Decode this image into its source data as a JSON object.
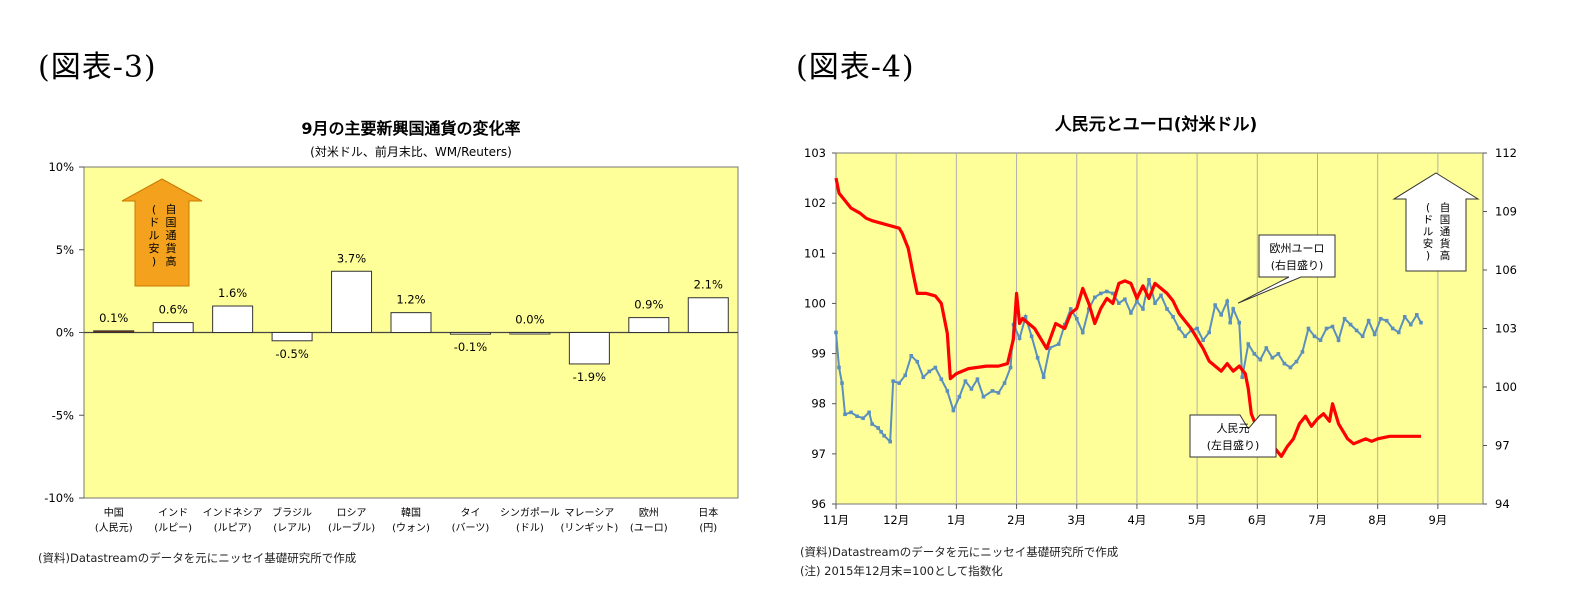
{
  "figures": {
    "left_label": "(図表-3)",
    "right_label": "(図表-4)"
  },
  "colors": {
    "plot_bg": "#ffff99",
    "bar_fill": "#ffffff",
    "bar_china": "#7b2a0e",
    "arrow_orange": "#f4a21e",
    "rmb_line": "#ff0000",
    "eur_line": "#5b8fbe"
  },
  "chart_data": [
    {
      "type": "bar",
      "title": "9月の主要新興国通貨の変化率",
      "subtitle": "(対米ドル、前月末比、WM/Reuters)",
      "categories": [
        [
          "中国",
          "(人民元)"
        ],
        [
          "インド",
          "(ルピー)"
        ],
        [
          "インドネシア",
          "(ルピア)"
        ],
        [
          "ブラジル",
          "(レアル)"
        ],
        [
          "ロシア",
          "(ルーブル)"
        ],
        [
          "韓国",
          "(ウォン)"
        ],
        [
          "タイ",
          "(バーツ)"
        ],
        [
          "シンガポール",
          "(ドル)"
        ],
        [
          "マレーシア",
          "(リンギット)"
        ],
        [
          "欧州",
          "(ユーロ)"
        ],
        [
          "日本",
          "(円)"
        ]
      ],
      "values": [
        0.1,
        0.6,
        1.6,
        -0.5,
        3.7,
        1.2,
        -0.1,
        0.0,
        -1.9,
        0.9,
        2.1
      ],
      "value_labels": [
        "0.1%",
        "0.6%",
        "1.6%",
        "-0.5%",
        "3.7%",
        "1.2%",
        "-0.1%",
        "0.0%",
        "-1.9%",
        "0.9%",
        "2.1%"
      ],
      "ylim": [
        -10,
        10
      ],
      "yticks": [
        10,
        5,
        0,
        -5,
        -10
      ],
      "ytick_labels": [
        "10%",
        "5%",
        "0%",
        "-5%",
        "-10%"
      ],
      "arrow_annotation": [
        "自国通貨高",
        "(ドル安)"
      ],
      "source_note": "(資料)Datastreamのデータを元にニッセイ基礎研究所で作成"
    },
    {
      "type": "line",
      "title": "人民元とユーロ(対米ドル)",
      "x_tick_labels": [
        "11月",
        "12月",
        "1月",
        "2月",
        "3月",
        "4月",
        "5月",
        "6月",
        "7月",
        "8月",
        "9月"
      ],
      "y_left": {
        "ticks": [
          103,
          102,
          101,
          100,
          99,
          98,
          97,
          96
        ],
        "ylim": [
          96,
          103
        ]
      },
      "y_right": {
        "ticks": [
          112,
          109,
          106,
          103,
          100,
          97,
          94
        ],
        "ylim": [
          94,
          112
        ]
      },
      "grid": "vertical",
      "series": [
        {
          "name": "人民元",
          "callout": [
            "人民元",
            "(左目盛り)"
          ],
          "axis": "left",
          "points": [
            [
              0,
              102.5
            ],
            [
              0.05,
              102.2
            ],
            [
              0.25,
              101.9
            ],
            [
              0.4,
              101.8
            ],
            [
              0.5,
              101.7
            ],
            [
              0.6,
              101.65
            ],
            [
              0.75,
              101.6
            ],
            [
              0.9,
              101.55
            ],
            [
              1.05,
              101.5
            ],
            [
              1.1,
              101.4
            ],
            [
              1.2,
              101.1
            ],
            [
              1.28,
              100.6
            ],
            [
              1.35,
              100.2
            ],
            [
              1.5,
              100.2
            ],
            [
              1.65,
              100.15
            ],
            [
              1.75,
              100.0
            ],
            [
              1.85,
              99.4
            ],
            [
              1.9,
              98.5
            ],
            [
              2.0,
              98.6
            ],
            [
              2.2,
              98.7
            ],
            [
              2.5,
              98.75
            ],
            [
              2.7,
              98.75
            ],
            [
              2.85,
              98.8
            ],
            [
              2.95,
              99.3
            ],
            [
              3.0,
              100.2
            ],
            [
              3.05,
              99.6
            ],
            [
              3.1,
              99.7
            ],
            [
              3.3,
              99.5
            ],
            [
              3.5,
              99.1
            ],
            [
              3.65,
              99.6
            ],
            [
              3.8,
              99.5
            ],
            [
              3.9,
              99.8
            ],
            [
              4.0,
              99.9
            ],
            [
              4.1,
              100.3
            ],
            [
              4.2,
              100.0
            ],
            [
              4.3,
              99.6
            ],
            [
              4.4,
              99.9
            ],
            [
              4.5,
              100.1
            ],
            [
              4.6,
              100.0
            ],
            [
              4.7,
              100.4
            ],
            [
              4.8,
              100.45
            ],
            [
              4.9,
              100.4
            ],
            [
              5.0,
              100.1
            ],
            [
              5.1,
              100.35
            ],
            [
              5.2,
              100.1
            ],
            [
              5.3,
              100.4
            ],
            [
              5.4,
              100.3
            ],
            [
              5.5,
              100.2
            ],
            [
              5.6,
              100.05
            ],
            [
              5.7,
              99.8
            ],
            [
              5.8,
              99.65
            ],
            [
              5.9,
              99.5
            ],
            [
              6.0,
              99.3
            ],
            [
              6.1,
              99.1
            ],
            [
              6.2,
              98.85
            ],
            [
              6.3,
              98.75
            ],
            [
              6.4,
              98.65
            ],
            [
              6.5,
              98.8
            ],
            [
              6.6,
              98.65
            ],
            [
              6.7,
              98.75
            ],
            [
              6.8,
              98.6
            ],
            [
              6.85,
              98.3
            ],
            [
              6.9,
              97.8
            ],
            [
              7.0,
              97.5
            ],
            [
              7.05,
              97.1
            ],
            [
              7.2,
              97.0
            ],
            [
              7.3,
              97.1
            ],
            [
              7.4,
              96.95
            ],
            [
              7.5,
              97.15
            ],
            [
              7.6,
              97.3
            ],
            [
              7.7,
              97.6
            ],
            [
              7.8,
              97.75
            ],
            [
              7.9,
              97.55
            ],
            [
              8.0,
              97.7
            ],
            [
              8.1,
              97.8
            ],
            [
              8.2,
              97.65
            ],
            [
              8.25,
              98.0
            ],
            [
              8.35,
              97.6
            ],
            [
              8.5,
              97.3
            ],
            [
              8.6,
              97.2
            ],
            [
              8.7,
              97.25
            ],
            [
              8.8,
              97.3
            ],
            [
              8.9,
              97.25
            ],
            [
              9.0,
              97.3
            ],
            [
              9.2,
              97.35
            ],
            [
              9.5,
              97.35
            ],
            [
              9.72,
              97.35
            ]
          ]
        },
        {
          "name": "欧州ユーロ",
          "callout": [
            "欧州ユーロ",
            "(右目盛り)"
          ],
          "axis": "right",
          "points": [
            [
              0,
              102.8
            ],
            [
              0.05,
              101.0
            ],
            [
              0.1,
              100.2
            ],
            [
              0.15,
              98.6
            ],
            [
              0.25,
              98.7
            ],
            [
              0.35,
              98.5
            ],
            [
              0.45,
              98.4
            ],
            [
              0.55,
              98.7
            ],
            [
              0.6,
              98.1
            ],
            [
              0.7,
              97.9
            ],
            [
              0.75,
              97.7
            ],
            [
              0.8,
              97.5
            ],
            [
              0.9,
              97.2
            ],
            [
              0.95,
              100.3
            ],
            [
              1.05,
              100.2
            ],
            [
              1.15,
              100.6
            ],
            [
              1.25,
              101.6
            ],
            [
              1.35,
              101.3
            ],
            [
              1.45,
              100.5
            ],
            [
              1.55,
              100.8
            ],
            [
              1.65,
              101.0
            ],
            [
              1.75,
              100.4
            ],
            [
              1.85,
              99.8
            ],
            [
              1.95,
              98.8
            ],
            [
              2.05,
              99.5
            ],
            [
              2.15,
              100.3
            ],
            [
              2.25,
              99.9
            ],
            [
              2.35,
              100.4
            ],
            [
              2.45,
              99.5
            ],
            [
              2.6,
              99.8
            ],
            [
              2.7,
              99.7
            ],
            [
              2.8,
              100.2
            ],
            [
              2.9,
              101.0
            ],
            [
              2.95,
              103.2
            ],
            [
              3.05,
              102.5
            ],
            [
              3.15,
              103.6
            ],
            [
              3.25,
              102.6
            ],
            [
              3.35,
              101.5
            ],
            [
              3.45,
              100.5
            ],
            [
              3.55,
              102.0
            ],
            [
              3.7,
              102.2
            ],
            [
              3.8,
              103.2
            ],
            [
              3.9,
              104.0
            ],
            [
              4.0,
              103.5
            ],
            [
              4.1,
              102.8
            ],
            [
              4.2,
              104.0
            ],
            [
              4.3,
              104.6
            ],
            [
              4.4,
              104.8
            ],
            [
              4.5,
              104.9
            ],
            [
              4.6,
              104.8
            ],
            [
              4.7,
              104.3
            ],
            [
              4.8,
              104.5
            ],
            [
              4.9,
              103.8
            ],
            [
              5.0,
              104.4
            ],
            [
              5.1,
              104.0
            ],
            [
              5.2,
              105.5
            ],
            [
              5.3,
              104.3
            ],
            [
              5.4,
              104.7
            ],
            [
              5.5,
              104.0
            ],
            [
              5.6,
              103.6
            ],
            [
              5.7,
              103.0
            ],
            [
              5.8,
              102.6
            ],
            [
              5.9,
              102.9
            ],
            [
              6.0,
              103.0
            ],
            [
              6.1,
              102.4
            ],
            [
              6.2,
              102.8
            ],
            [
              6.3,
              104.2
            ],
            [
              6.4,
              103.7
            ],
            [
              6.5,
              104.4
            ],
            [
              6.55,
              103.3
            ],
            [
              6.6,
              104.0
            ],
            [
              6.7,
              103.3
            ],
            [
              6.75,
              100.5
            ],
            [
              6.85,
              102.2
            ],
            [
              6.95,
              101.7
            ],
            [
              7.05,
              101.4
            ],
            [
              7.15,
              102.0
            ],
            [
              7.25,
              101.5
            ],
            [
              7.35,
              101.7
            ],
            [
              7.45,
              101.2
            ],
            [
              7.55,
              101.0
            ],
            [
              7.65,
              101.3
            ],
            [
              7.75,
              101.8
            ],
            [
              7.85,
              103.0
            ],
            [
              7.95,
              102.6
            ],
            [
              8.05,
              102.4
            ],
            [
              8.15,
              103.0
            ],
            [
              8.25,
              103.1
            ],
            [
              8.35,
              102.4
            ],
            [
              8.45,
              103.5
            ],
            [
              8.55,
              103.2
            ],
            [
              8.65,
              102.9
            ],
            [
              8.75,
              102.6
            ],
            [
              8.85,
              103.4
            ],
            [
              8.95,
              102.7
            ],
            [
              9.05,
              103.5
            ],
            [
              9.15,
              103.4
            ],
            [
              9.25,
              103.0
            ],
            [
              9.35,
              102.8
            ],
            [
              9.45,
              103.6
            ],
            [
              9.55,
              103.2
            ],
            [
              9.65,
              103.7
            ],
            [
              9.72,
              103.3
            ]
          ]
        }
      ],
      "arrow_annotation": [
        "自国通貨高",
        "(ドル安)"
      ],
      "source_note": "(資料)Datastreamのデータを元にニッセイ基礎研究所で作成",
      "footnote": "(注) 2015年12月末=100として指数化"
    }
  ]
}
